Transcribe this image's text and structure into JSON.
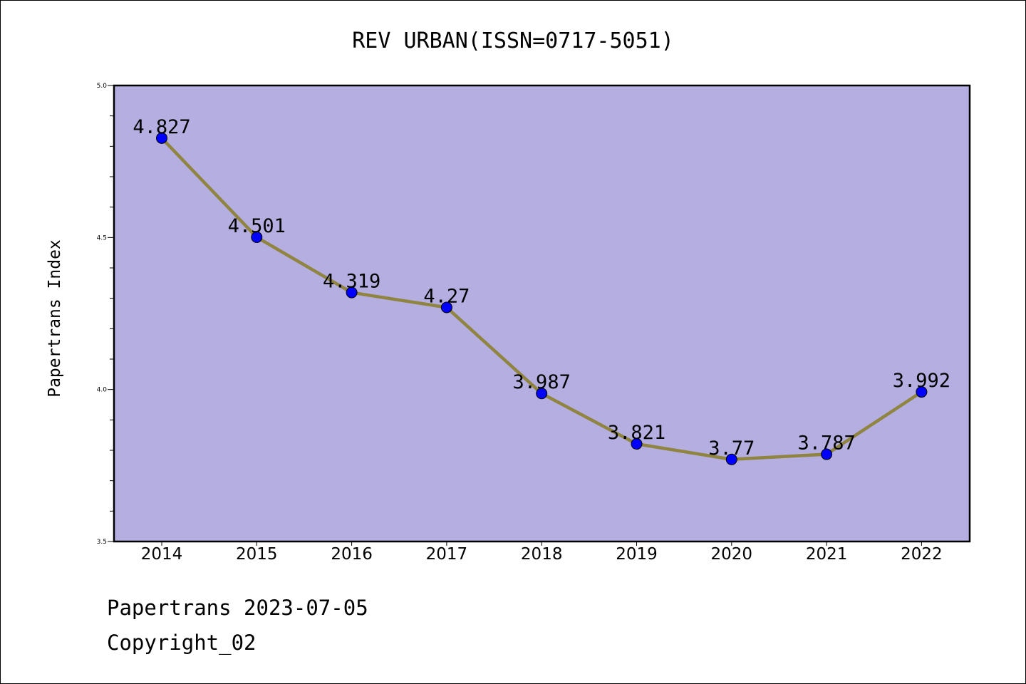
{
  "chart_data": {
    "type": "line",
    "title": "REV URBAN(ISSN=0717-5051)",
    "xlabel": "",
    "ylabel": "Papertrans Index",
    "categories": [
      "2014",
      "2015",
      "2016",
      "2017",
      "2018",
      "2019",
      "2020",
      "2021",
      "2022"
    ],
    "series": [
      {
        "values": [
          4.827,
          4.501,
          4.319,
          4.27,
          3.987,
          3.821,
          3.77,
          3.787,
          3.992
        ],
        "data_labels": [
          "4.827",
          "4.501",
          "4.319",
          "4.27",
          "3.987",
          "3.821",
          "3.77",
          "3.787",
          "3.992"
        ]
      }
    ],
    "ylim": [
      3.5,
      5.0
    ],
    "yticks": [
      "3.5",
      "4.0",
      "4.5",
      "5.0"
    ],
    "grid": false,
    "colors": {
      "plot_background": "#b4aee1",
      "line": "#8f8440",
      "marker": "#0000ff"
    }
  },
  "footer": {
    "date_line": "Papertrans 2023-07-05",
    "copyright_line": "Copyright_02"
  }
}
